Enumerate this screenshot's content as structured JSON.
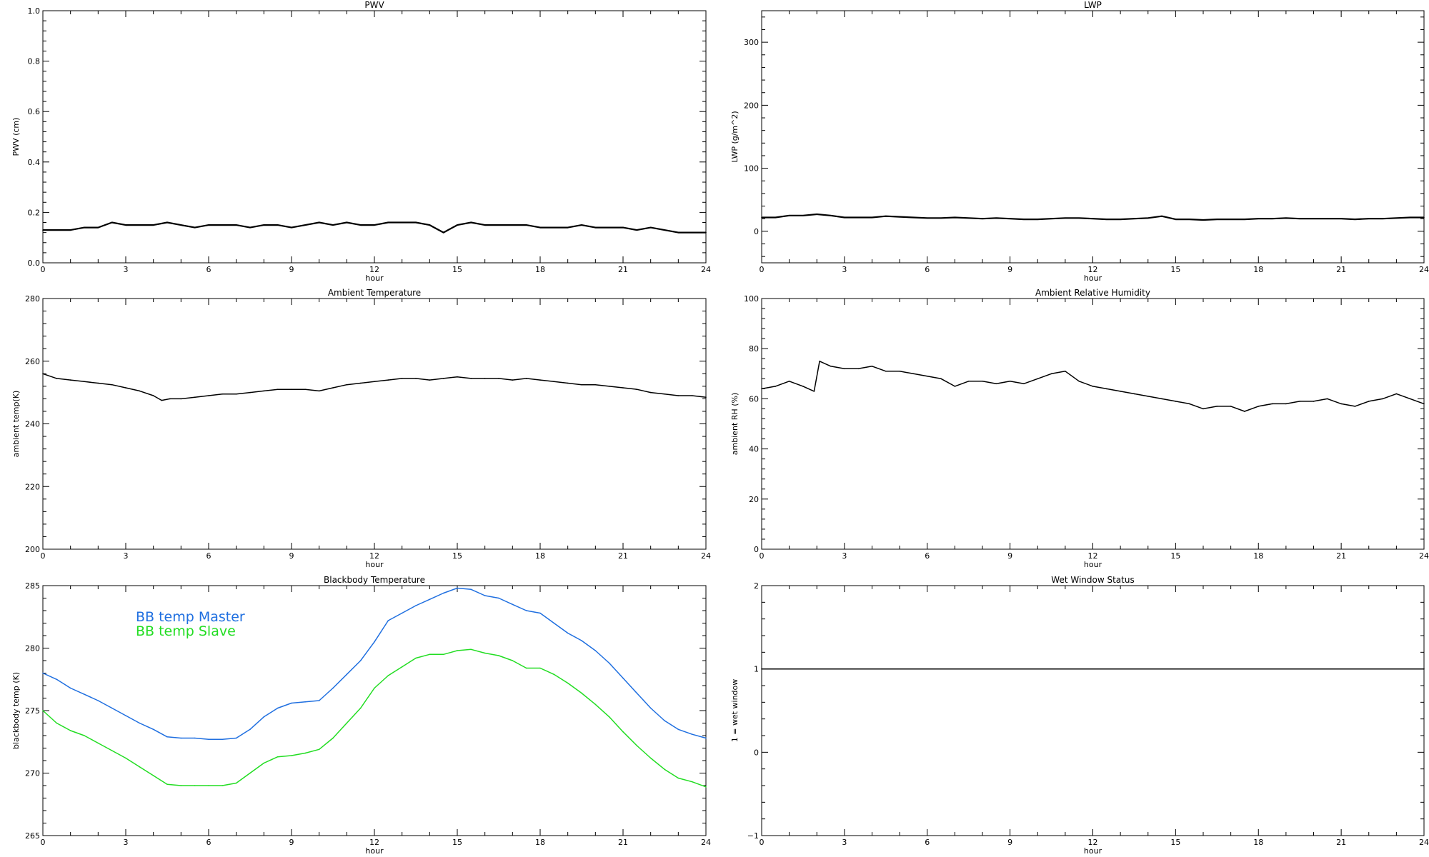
{
  "chart_data": [
    {
      "type": "line",
      "title": "PWV",
      "xlabel": "hour",
      "ylabel": "PWV (cm)",
      "xlim": [
        0,
        24
      ],
      "ylim": [
        0,
        1.0
      ],
      "xticks": [
        "0",
        "3",
        "6",
        "9",
        "12",
        "15",
        "18",
        "21",
        "24"
      ],
      "yticks": [
        "0.0",
        "0.2",
        "0.4",
        "0.6",
        "0.8",
        "1.0"
      ],
      "series": [
        {
          "color": "#000000",
          "x": [
            0,
            0.5,
            1,
            1.5,
            2,
            2.5,
            3,
            3.5,
            4,
            4.5,
            5,
            5.5,
            6,
            6.5,
            7,
            7.5,
            8,
            8.5,
            9,
            9.5,
            10,
            10.5,
            11,
            11.5,
            12,
            12.5,
            13,
            13.5,
            14,
            14.5,
            15,
            15.5,
            16,
            16.5,
            17,
            17.5,
            18,
            18.5,
            19,
            19.5,
            20,
            20.5,
            21,
            21.5,
            22,
            22.5,
            23,
            23.5,
            24
          ],
          "y": [
            0.13,
            0.13,
            0.13,
            0.14,
            0.14,
            0.16,
            0.15,
            0.15,
            0.15,
            0.16,
            0.15,
            0.14,
            0.15,
            0.15,
            0.15,
            0.14,
            0.15,
            0.15,
            0.14,
            0.15,
            0.16,
            0.15,
            0.16,
            0.15,
            0.15,
            0.16,
            0.16,
            0.16,
            0.15,
            0.12,
            0.15,
            0.16,
            0.15,
            0.15,
            0.15,
            0.15,
            0.14,
            0.14,
            0.14,
            0.15,
            0.14,
            0.14,
            0.14,
            0.13,
            0.14,
            0.13,
            0.12,
            0.12,
            0.12
          ]
        }
      ]
    },
    {
      "type": "line",
      "title": "LWP",
      "xlabel": "hour",
      "ylabel": "LWP (g/m^2)",
      "xlim": [
        0,
        24
      ],
      "ylim": [
        -50,
        350
      ],
      "xticks": [
        "0",
        "3",
        "6",
        "9",
        "12",
        "15",
        "18",
        "21",
        "24"
      ],
      "yticks": [
        "0",
        "100",
        "200",
        "300"
      ],
      "series": [
        {
          "color": "#000000",
          "x": [
            0,
            0.5,
            1,
            1.5,
            2,
            2.5,
            3,
            3.5,
            4,
            4.5,
            5,
            5.5,
            6,
            6.5,
            7,
            7.5,
            8,
            8.5,
            9,
            9.5,
            10,
            10.5,
            11,
            11.5,
            12,
            12.5,
            13,
            13.5,
            14,
            14.5,
            15,
            15.5,
            16,
            16.5,
            17,
            17.5,
            18,
            18.5,
            19,
            19.5,
            20,
            20.5,
            21,
            21.5,
            22,
            22.5,
            23,
            23.5,
            24
          ],
          "y": [
            22,
            22,
            25,
            25,
            27,
            25,
            22,
            22,
            22,
            24,
            23,
            22,
            21,
            21,
            22,
            21,
            20,
            21,
            20,
            19,
            19,
            20,
            21,
            21,
            20,
            19,
            19,
            20,
            21,
            24,
            19,
            19,
            18,
            19,
            19,
            19,
            20,
            20,
            21,
            20,
            20,
            20,
            20,
            19,
            20,
            20,
            21,
            22,
            22
          ]
        }
      ]
    },
    {
      "type": "line",
      "title": "Ambient Temperature",
      "xlabel": "hour",
      "ylabel": "ambient temp(K)",
      "xlim": [
        0,
        24
      ],
      "ylim": [
        200,
        280
      ],
      "xticks": [
        "0",
        "3",
        "6",
        "9",
        "12",
        "15",
        "18",
        "21",
        "24"
      ],
      "yticks": [
        "200",
        "220",
        "240",
        "260",
        "280"
      ],
      "series": [
        {
          "color": "#000000",
          "x": [
            0,
            0.5,
            1,
            1.5,
            2,
            2.5,
            3,
            3.5,
            4,
            4.3,
            4.6,
            5,
            5.5,
            6,
            6.5,
            7,
            7.5,
            8,
            8.5,
            9,
            9.5,
            10,
            10.5,
            11,
            11.5,
            12,
            12.5,
            13,
            13.5,
            14,
            14.5,
            15,
            15.5,
            16,
            16.5,
            17,
            17.5,
            18,
            18.5,
            19,
            19.5,
            20,
            20.5,
            21,
            21.5,
            22,
            22.5,
            23,
            23.5,
            24
          ],
          "y": [
            256,
            254.5,
            254,
            253.5,
            253,
            252.5,
            251.5,
            250.5,
            249,
            247.5,
            248,
            248,
            248.5,
            249,
            249.5,
            249.5,
            250,
            250.5,
            251,
            251,
            251,
            250.5,
            251.5,
            252.5,
            253,
            253.5,
            254,
            254.5,
            254.5,
            254,
            254.5,
            255,
            254.5,
            254.5,
            254.5,
            254,
            254.5,
            254,
            253.5,
            253,
            252.5,
            252.5,
            252,
            251.5,
            251,
            250,
            249.5,
            249,
            249,
            248.5
          ]
        }
      ]
    },
    {
      "type": "line",
      "title": "Ambient Relative Humidity",
      "xlabel": "hour",
      "ylabel": "ambient RH (%)",
      "xlim": [
        0,
        24
      ],
      "ylim": [
        0,
        100
      ],
      "xticks": [
        "0",
        "3",
        "6",
        "9",
        "12",
        "15",
        "18",
        "21",
        "24"
      ],
      "yticks": [
        "0",
        "20",
        "40",
        "60",
        "80",
        "100"
      ],
      "series": [
        {
          "color": "#000000",
          "x": [
            0,
            0.5,
            1,
            1.5,
            1.9,
            2.1,
            2.5,
            3,
            3.5,
            4,
            4.5,
            5,
            5.5,
            6,
            6.5,
            7,
            7.5,
            8,
            8.5,
            9,
            9.5,
            10,
            10.5,
            11,
            11.5,
            12,
            12.5,
            13,
            13.5,
            14,
            14.5,
            15,
            15.5,
            16,
            16.5,
            17,
            17.5,
            18,
            18.5,
            19,
            19.5,
            20,
            20.5,
            21,
            21.5,
            22,
            22.5,
            23,
            23.5,
            24
          ],
          "y": [
            64,
            65,
            67,
            65,
            63,
            75,
            73,
            72,
            72,
            73,
            71,
            71,
            70,
            69,
            68,
            65,
            67,
            67,
            66,
            67,
            66,
            68,
            70,
            71,
            67,
            65,
            64,
            63,
            62,
            61,
            60,
            59,
            58,
            56,
            57,
            57,
            55,
            57,
            58,
            58,
            59,
            59,
            60,
            58,
            57,
            59,
            60,
            62,
            60,
            58
          ]
        }
      ]
    },
    {
      "type": "line",
      "title": "Blackbody Temperature",
      "xlabel": "hour",
      "ylabel": "blackbody temp (K)",
      "xlim": [
        0,
        24
      ],
      "ylim": [
        265,
        285
      ],
      "xticks": [
        "0",
        "3",
        "6",
        "9",
        "12",
        "15",
        "18",
        "21",
        "24"
      ],
      "yticks": [
        "265",
        "270",
        "275",
        "280",
        "285"
      ],
      "legend_position": "top-left",
      "series": [
        {
          "name": "BB temp Master",
          "color": "#1f6fe0",
          "x": [
            0,
            0.5,
            1,
            1.5,
            2,
            2.5,
            3,
            3.5,
            4,
            4.5,
            5,
            5.5,
            6,
            6.5,
            7,
            7.5,
            8,
            8.5,
            9,
            9.5,
            10,
            10.5,
            11,
            11.5,
            12,
            12.5,
            13,
            13.5,
            14,
            14.5,
            15,
            15.5,
            16,
            16.5,
            17,
            17.5,
            18,
            18.5,
            19,
            19.5,
            20,
            20.5,
            21,
            21.5,
            22,
            22.5,
            23,
            23.5,
            24
          ],
          "y": [
            278,
            277.5,
            276.8,
            276.3,
            275.8,
            275.2,
            274.6,
            274,
            273.5,
            272.9,
            272.8,
            272.8,
            272.7,
            272.7,
            272.8,
            273.5,
            274.5,
            275.2,
            275.6,
            275.7,
            275.8,
            276.8,
            277.9,
            279,
            280.5,
            282.2,
            282.8,
            283.4,
            283.9,
            284.4,
            284.8,
            284.7,
            284.2,
            284,
            283.5,
            283,
            282.8,
            282,
            281.2,
            280.6,
            279.8,
            278.8,
            277.6,
            276.4,
            275.2,
            274.2,
            273.5,
            273.1,
            272.8
          ]
        },
        {
          "name": "BB temp Slave",
          "color": "#22dd22",
          "x": [
            0,
            0.5,
            1,
            1.5,
            2,
            2.5,
            3,
            3.5,
            4,
            4.5,
            5,
            5.5,
            6,
            6.5,
            7,
            7.5,
            8,
            8.5,
            9,
            9.5,
            10,
            10.5,
            11,
            11.5,
            12,
            12.5,
            13,
            13.5,
            14,
            14.5,
            15,
            15.5,
            16,
            16.5,
            17,
            17.5,
            18,
            18.5,
            19,
            19.5,
            20,
            20.5,
            21,
            21.5,
            22,
            22.5,
            23,
            23.5,
            24
          ],
          "y": [
            275,
            274,
            273.4,
            273,
            272.4,
            271.8,
            271.2,
            270.5,
            269.8,
            269.1,
            269,
            269,
            269,
            269,
            269.2,
            270,
            270.8,
            271.3,
            271.4,
            271.6,
            271.9,
            272.8,
            274,
            275.2,
            276.8,
            277.8,
            278.5,
            279.2,
            279.5,
            279.5,
            279.8,
            279.9,
            279.6,
            279.4,
            279,
            278.4,
            278.4,
            277.9,
            277.2,
            276.4,
            275.5,
            274.5,
            273.3,
            272.2,
            271.2,
            270.3,
            269.6,
            269.3,
            268.9
          ]
        }
      ]
    },
    {
      "type": "line",
      "title": "Wet Window Status",
      "xlabel": "hour",
      "ylabel": "1 = wet window",
      "xlim": [
        0,
        24
      ],
      "ylim": [
        -1,
        2
      ],
      "xticks": [
        "0",
        "3",
        "6",
        "9",
        "12",
        "15",
        "18",
        "21",
        "24"
      ],
      "yticks": [
        "−1",
        "0",
        "1",
        "2"
      ],
      "series": [
        {
          "color": "#000000",
          "x": [
            0,
            24
          ],
          "y": [
            1,
            1
          ]
        }
      ]
    }
  ]
}
